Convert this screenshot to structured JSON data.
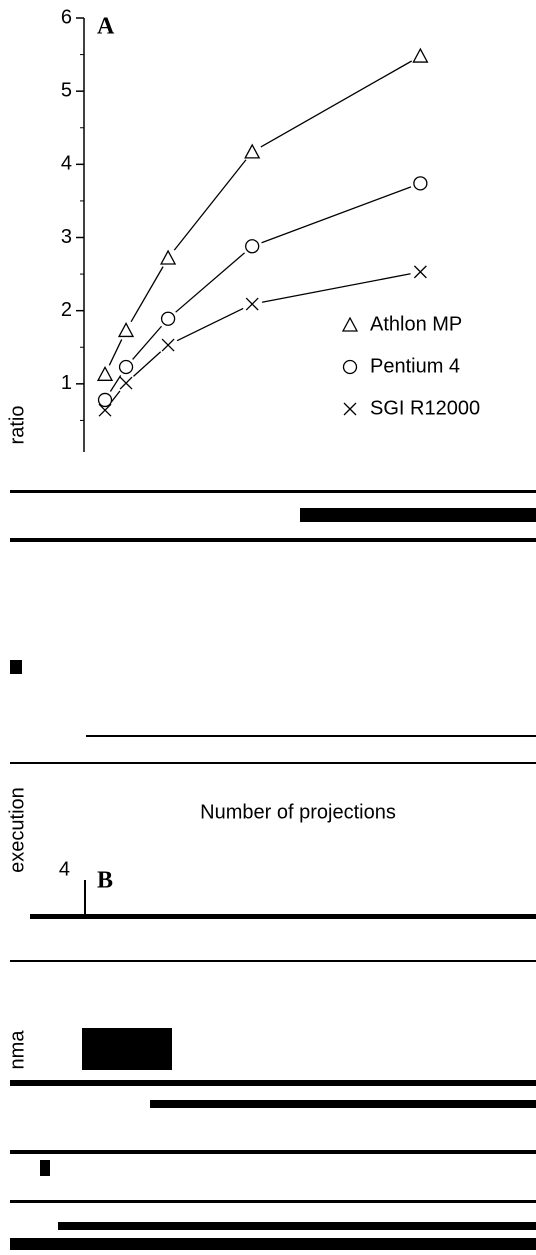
{
  "chart_data": {
    "type": "line",
    "panel_label": "A",
    "xlabel": "Number of projections",
    "ylabel": "ratio",
    "x": [
      1,
      2,
      4,
      8,
      16
    ],
    "xlim": [
      0,
      21.5
    ],
    "ylim": [
      0,
      6
    ],
    "yticks": [
      1,
      2,
      3,
      4,
      5,
      6
    ],
    "legend": "right",
    "series": [
      {
        "name": "Athlon MP",
        "marker": "triangle",
        "color": "#000000",
        "values": [
          1.13,
          1.73,
          2.72,
          4.17,
          5.48
        ]
      },
      {
        "name": "Pentium 4",
        "marker": "circle",
        "color": "#000000",
        "values": [
          0.78,
          1.23,
          1.89,
          2.88,
          3.74
        ]
      },
      {
        "name": "SGI R12000",
        "marker": "cross",
        "color": "#000000",
        "values": [
          0.64,
          1.01,
          1.53,
          2.09,
          2.53
        ]
      }
    ],
    "annotations": [
      "execution",
      "nma",
      "B",
      "4"
    ]
  }
}
